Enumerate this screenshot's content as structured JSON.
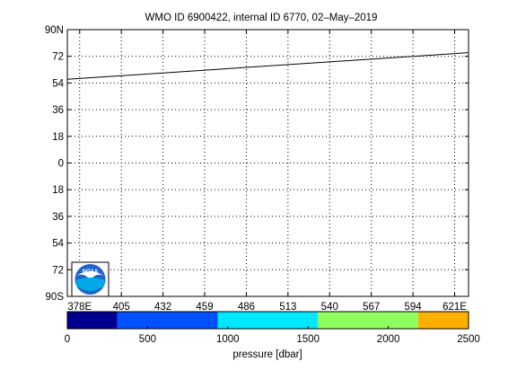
{
  "chart_data": {
    "type": "line",
    "title": "WMO ID 6900422, internal ID 6770, 02–May–2019",
    "xlim": [
      370,
      630
    ],
    "ylim": [
      -90,
      90
    ],
    "x_ticks": [
      {
        "value": 378,
        "label": "378E"
      },
      {
        "value": 405,
        "label": "405"
      },
      {
        "value": 432,
        "label": "432"
      },
      {
        "value": 459,
        "label": "459"
      },
      {
        "value": 486,
        "label": "486"
      },
      {
        "value": 513,
        "label": "513"
      },
      {
        "value": 540,
        "label": "540"
      },
      {
        "value": 567,
        "label": "567"
      },
      {
        "value": 594,
        "label": "594"
      },
      {
        "value": 621,
        "label": "621E"
      }
    ],
    "y_ticks": [
      {
        "value": 90,
        "label": "90N"
      },
      {
        "value": 72,
        "label": "72"
      },
      {
        "value": 54,
        "label": "54"
      },
      {
        "value": 36,
        "label": "36"
      },
      {
        "value": 18,
        "label": "18"
      },
      {
        "value": 0,
        "label": "0"
      },
      {
        "value": -18,
        "label": "18"
      },
      {
        "value": -36,
        "label": "36"
      },
      {
        "value": -54,
        "label": "54"
      },
      {
        "value": -72,
        "label": "72"
      },
      {
        "value": -90,
        "label": "90S"
      }
    ],
    "grid": true,
    "series": [
      {
        "x": [
          370,
          630
        ],
        "y": [
          56.5,
          74.5
        ],
        "color": "#000000"
      }
    ],
    "colorbar": {
      "label": "pressure [dbar]",
      "range": [
        0,
        2500
      ],
      "ticks": [
        0,
        500,
        1000,
        1500,
        2000,
        2500
      ],
      "segments": [
        {
          "from": 0,
          "to": 312,
          "color": "#00008f"
        },
        {
          "from": 312,
          "to": 937,
          "color": "#0050ff"
        },
        {
          "from": 937,
          "to": 1562,
          "color": "#00e8ff"
        },
        {
          "from": 1562,
          "to": 2187,
          "color": "#8fff5f"
        },
        {
          "from": 2187,
          "to": 2500,
          "color": "#ffb000"
        }
      ]
    },
    "logo": {
      "text": "NOAA"
    }
  }
}
